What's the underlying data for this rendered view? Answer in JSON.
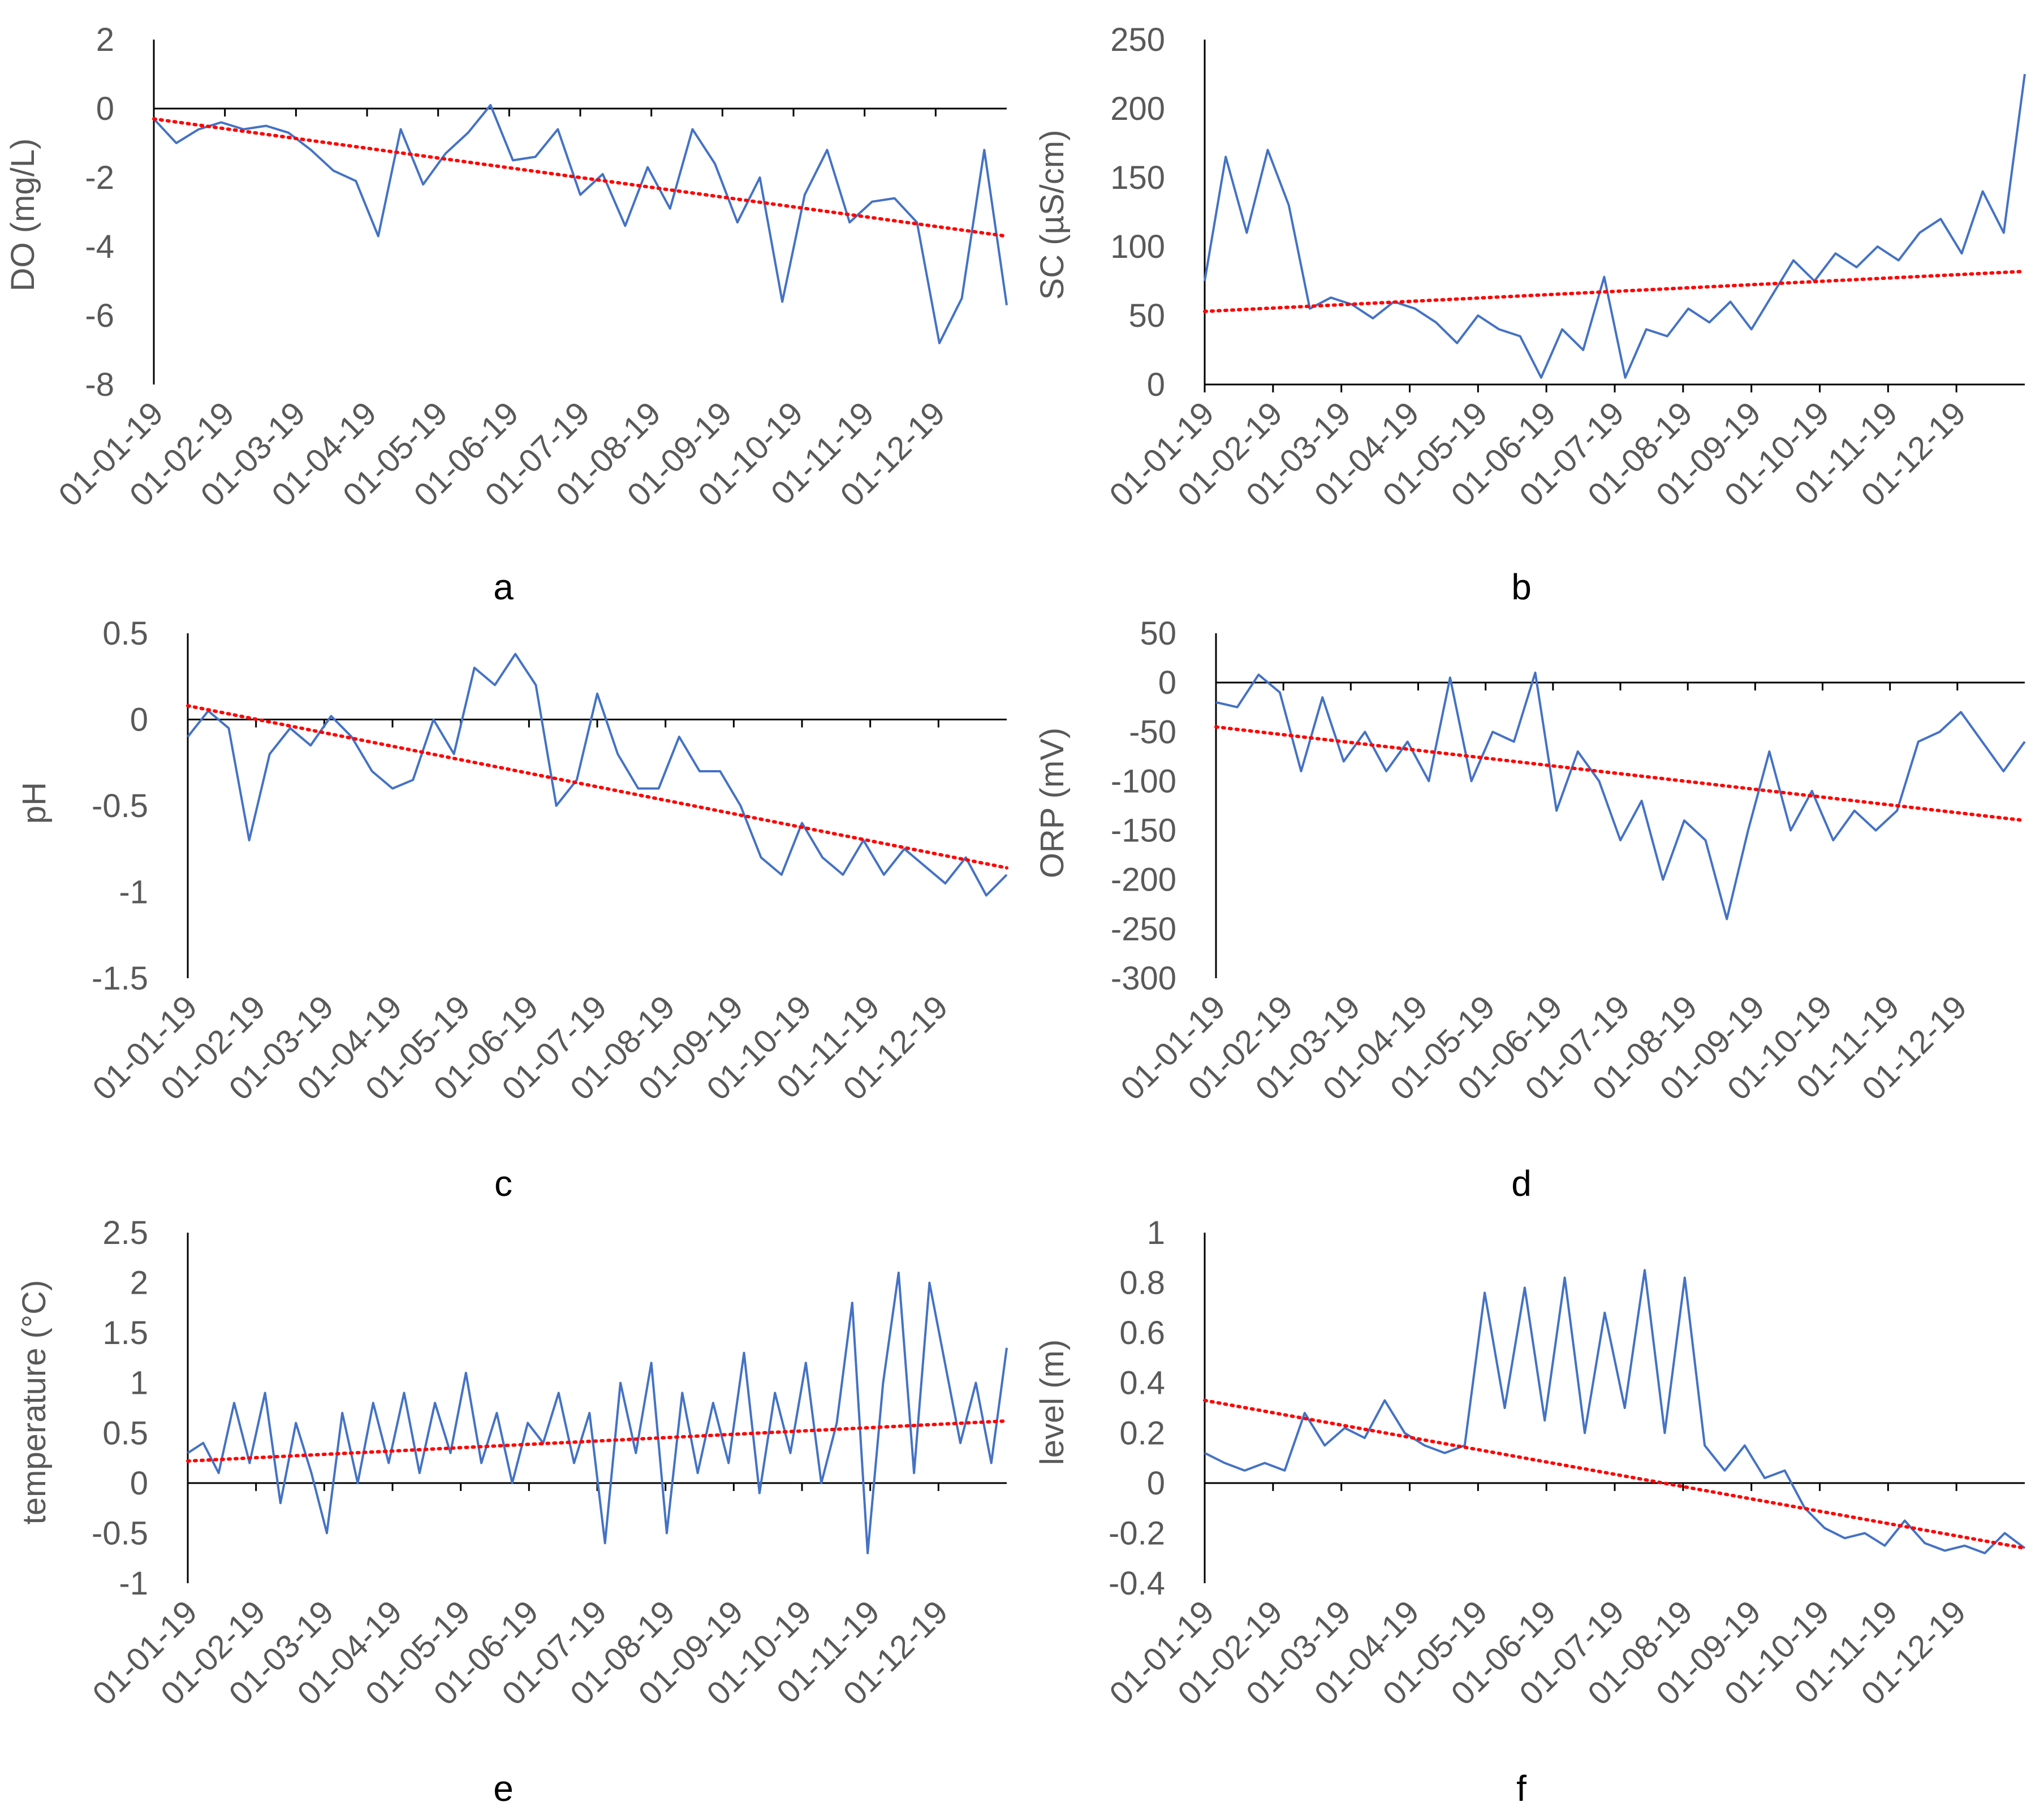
{
  "colors": {
    "series": "#4472c4",
    "trend": "#ff0000",
    "axis": "#000000",
    "text": "#595959"
  },
  "chart_data": [
    {
      "type": "line",
      "panel": "a",
      "ylabel": "DO (mg/L)",
      "ylim": [
        -8,
        2
      ],
      "yticks": [
        "2",
        "0",
        "-2",
        "-4",
        "-6",
        "-8"
      ],
      "xticks": [
        "01-01-19",
        "01-02-19",
        "01-03-19",
        "01-04-19",
        "01-05-19",
        "01-06-19",
        "01-07-19",
        "01-08-19",
        "01-09-19",
        "01-10-19",
        "01-11-19",
        "01-12-19"
      ],
      "series": [
        {
          "name": "observed",
          "values": [
            -0.3,
            -1.0,
            -0.6,
            -0.4,
            -0.6,
            -0.5,
            -0.7,
            -1.2,
            -1.8,
            -2.1,
            -3.7,
            -0.6,
            -2.2,
            -1.3,
            -0.7,
            0.1,
            -1.5,
            -1.4,
            -0.6,
            -2.5,
            -1.9,
            -3.4,
            -1.7,
            -2.9,
            -0.6,
            -1.6,
            -3.3,
            -2.0,
            -5.6,
            -2.5,
            -1.2,
            -3.3,
            -2.7,
            -2.6,
            -3.3,
            -6.8,
            -5.5,
            -1.2,
            -5.7
          ]
        },
        {
          "name": "trend",
          "type": "linear",
          "values": [
            -0.3,
            -3.7
          ]
        }
      ]
    },
    {
      "type": "line",
      "panel": "b",
      "ylabel": "SC (µS/cm)",
      "ylim": [
        0,
        250
      ],
      "yticks": [
        "250",
        "200",
        "150",
        "100",
        "50",
        "0"
      ],
      "xticks": [
        "01-01-19",
        "01-02-19",
        "01-03-19",
        "01-04-19",
        "01-05-19",
        "01-06-19",
        "01-07-19",
        "01-08-19",
        "01-09-19",
        "01-10-19",
        "01-11-19",
        "01-12-19"
      ],
      "series": [
        {
          "name": "observed",
          "values": [
            75,
            165,
            110,
            170,
            130,
            55,
            63,
            58,
            48,
            60,
            55,
            45,
            30,
            50,
            40,
            35,
            5,
            40,
            25,
            78,
            5,
            40,
            35,
            55,
            45,
            60,
            40,
            65,
            90,
            75,
            95,
            85,
            100,
            90,
            110,
            120,
            95,
            140,
            110,
            225
          ]
        },
        {
          "name": "trend",
          "type": "linear",
          "values": [
            53,
            82
          ]
        }
      ]
    },
    {
      "type": "line",
      "panel": "c",
      "ylabel": "pH",
      "ylim": [
        -1.5,
        0.5
      ],
      "yticks": [
        "0.5",
        "0",
        "-0.5",
        "-1",
        "-1.5"
      ],
      "xticks": [
        "01-01-19",
        "01-02-19",
        "01-03-19",
        "01-04-19",
        "01-05-19",
        "01-06-19",
        "01-07-19",
        "01-08-19",
        "01-09-19",
        "01-10-19",
        "01-11-19",
        "01-12-19"
      ],
      "series": [
        {
          "name": "observed",
          "values": [
            -0.1,
            0.05,
            -0.05,
            -0.7,
            -0.2,
            -0.05,
            -0.15,
            0.02,
            -0.1,
            -0.3,
            -0.4,
            -0.35,
            0.0,
            -0.2,
            0.3,
            0.2,
            0.38,
            0.2,
            -0.5,
            -0.35,
            0.15,
            -0.2,
            -0.4,
            -0.4,
            -0.1,
            -0.3,
            -0.3,
            -0.5,
            -0.8,
            -0.9,
            -0.6,
            -0.8,
            -0.9,
            -0.7,
            -0.9,
            -0.75,
            -0.85,
            -0.95,
            -0.8,
            -1.02,
            -0.9
          ]
        },
        {
          "name": "trend",
          "type": "linear",
          "values": [
            0.08,
            -0.86
          ]
        }
      ]
    },
    {
      "type": "line",
      "panel": "d",
      "ylabel": "ORP (mV)",
      "ylim": [
        -300,
        50
      ],
      "yticks": [
        "50",
        "0",
        "-50",
        "-100",
        "-150",
        "-200",
        "-250",
        "-300"
      ],
      "xticks": [
        "01-01-19",
        "01-02-19",
        "01-03-19",
        "01-04-19",
        "01-05-19",
        "01-06-19",
        "01-07-19",
        "01-08-19",
        "01-09-19",
        "01-10-19",
        "01-11-19",
        "01-12-19"
      ],
      "series": [
        {
          "name": "observed",
          "values": [
            -20,
            -25,
            8,
            -10,
            -90,
            -15,
            -80,
            -50,
            -90,
            -60,
            -100,
            5,
            -100,
            -50,
            -60,
            10,
            -130,
            -70,
            -100,
            -160,
            -120,
            -200,
            -140,
            -160,
            -240,
            -150,
            -70,
            -150,
            -110,
            -160,
            -130,
            -150,
            -130,
            -60,
            -50,
            -30,
            -60,
            -90,
            -60
          ]
        },
        {
          "name": "trend",
          "type": "linear",
          "values": [
            -45,
            -140
          ]
        }
      ]
    },
    {
      "type": "line",
      "panel": "e",
      "ylabel": "temperature (°C)",
      "ylim": [
        -1,
        2.5
      ],
      "yticks": [
        "2.5",
        "2",
        "1.5",
        "1",
        "0.5",
        "0",
        "-0.5",
        "-1"
      ],
      "xticks": [
        "01-01-19",
        "01-02-19",
        "01-03-19",
        "01-04-19",
        "01-05-19",
        "01-06-19",
        "01-07-19",
        "01-08-19",
        "01-09-19",
        "01-10-19",
        "01-11-19",
        "01-12-19"
      ],
      "series": [
        {
          "name": "observed",
          "values": [
            0.3,
            0.4,
            0.1,
            0.8,
            0.2,
            0.9,
            -0.2,
            0.6,
            0.1,
            -0.5,
            0.7,
            0.0,
            0.8,
            0.2,
            0.9,
            0.1,
            0.8,
            0.3,
            1.1,
            0.2,
            0.7,
            0.0,
            0.6,
            0.4,
            0.9,
            0.2,
            0.7,
            -0.6,
            1.0,
            0.3,
            1.2,
            -0.5,
            0.9,
            0.1,
            0.8,
            0.2,
            1.3,
            -0.1,
            0.9,
            0.3,
            1.2,
            0.0,
            0.6,
            1.8,
            -0.7,
            1.0,
            2.1,
            0.1,
            2.0,
            1.2,
            0.4,
            1.0,
            0.2,
            1.35
          ]
        },
        {
          "name": "trend",
          "type": "linear",
          "values": [
            0.22,
            0.62
          ]
        }
      ]
    },
    {
      "type": "line",
      "panel": "f",
      "ylabel": "level (m)",
      "ylim": [
        -0.4,
        1
      ],
      "yticks": [
        "1",
        "0.8",
        "0.6",
        "0.4",
        "0.2",
        "0",
        "-0.2",
        "-0.4"
      ],
      "xticks": [
        "01-01-19",
        "01-02-19",
        "01-03-19",
        "01-04-19",
        "01-05-19",
        "01-06-19",
        "01-07-19",
        "01-08-19",
        "01-09-19",
        "01-10-19",
        "01-11-19",
        "01-12-19"
      ],
      "series": [
        {
          "name": "observed",
          "values": [
            0.12,
            0.08,
            0.05,
            0.08,
            0.05,
            0.28,
            0.15,
            0.22,
            0.18,
            0.33,
            0.2,
            0.15,
            0.12,
            0.15,
            0.76,
            0.3,
            0.78,
            0.25,
            0.82,
            0.2,
            0.68,
            0.3,
            0.85,
            0.2,
            0.82,
            0.15,
            0.05,
            0.15,
            0.02,
            0.05,
            -0.1,
            -0.18,
            -0.22,
            -0.2,
            -0.25,
            -0.15,
            -0.24,
            -0.27,
            -0.25,
            -0.28,
            -0.2,
            -0.26
          ]
        },
        {
          "name": "trend",
          "type": "linear",
          "values": [
            0.33,
            -0.26
          ]
        }
      ]
    }
  ]
}
